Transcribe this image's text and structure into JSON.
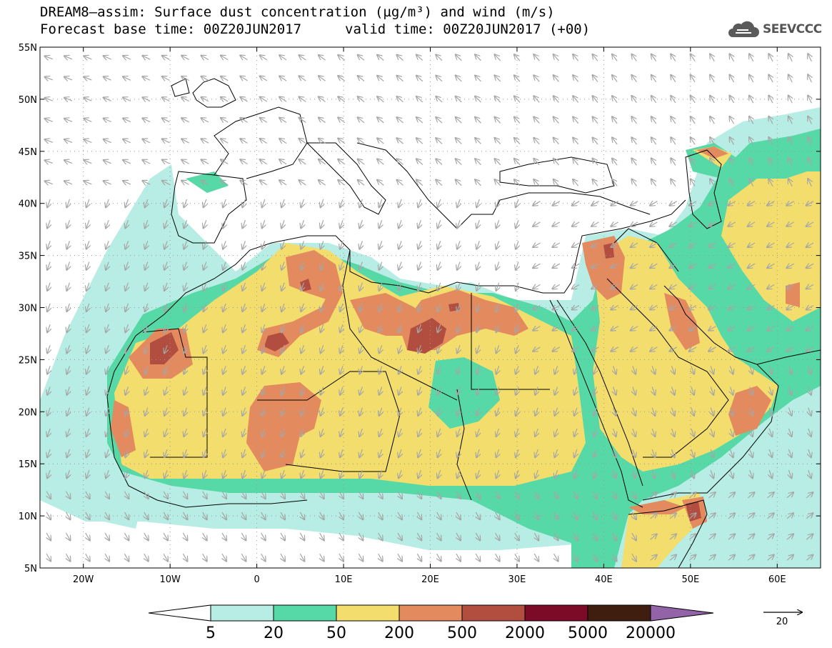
{
  "title": {
    "line1": "DREAM8–assim: Surface dust concentration (µg/m³) and wind (m/s)",
    "base_time": "Forecast base time: 00Z20JUN2017",
    "valid_time": "valid time: 00Z20JUN2017 (+00)"
  },
  "logo": {
    "text": "SEEVCCC",
    "icon": "cloud-icon"
  },
  "axes": {
    "lat_labels": [
      "55N",
      "50N",
      "45N",
      "40N",
      "35N",
      "30N",
      "25N",
      "20N",
      "15N",
      "10N",
      "5N"
    ],
    "lat_values": [
      55,
      50,
      45,
      40,
      35,
      30,
      25,
      20,
      15,
      10,
      5
    ],
    "lon_labels": [
      "20W",
      "10W",
      "0",
      "10E",
      "20E",
      "30E",
      "40E",
      "50E",
      "60E"
    ],
    "lon_values": [
      -20,
      -10,
      0,
      10,
      20,
      30,
      40,
      50,
      60
    ],
    "lon_range": [
      -25,
      65
    ],
    "lat_range": [
      5,
      55
    ],
    "grid": "dotted"
  },
  "colorbar": {
    "labels": [
      "5",
      "20",
      "50",
      "200",
      "500",
      "2000",
      "5000",
      "20000"
    ],
    "colors": [
      "#b7ede4",
      "#56d9a6",
      "#f3de6d",
      "#e48a5f",
      "#b24e3f",
      "#7b0b27",
      "#3f1e10"
    ],
    "under_color": "#ffffff",
    "over_color": "#9363a8"
  },
  "wind_reference": {
    "label": "20"
  },
  "colors": {
    "level1": "#b7ede4",
    "level2": "#56d9a6",
    "level3": "#f3de6d",
    "level4": "#e48a5f",
    "level5": "#b24e3f",
    "arrow": "#a6a6a6",
    "border": "#000000"
  }
}
